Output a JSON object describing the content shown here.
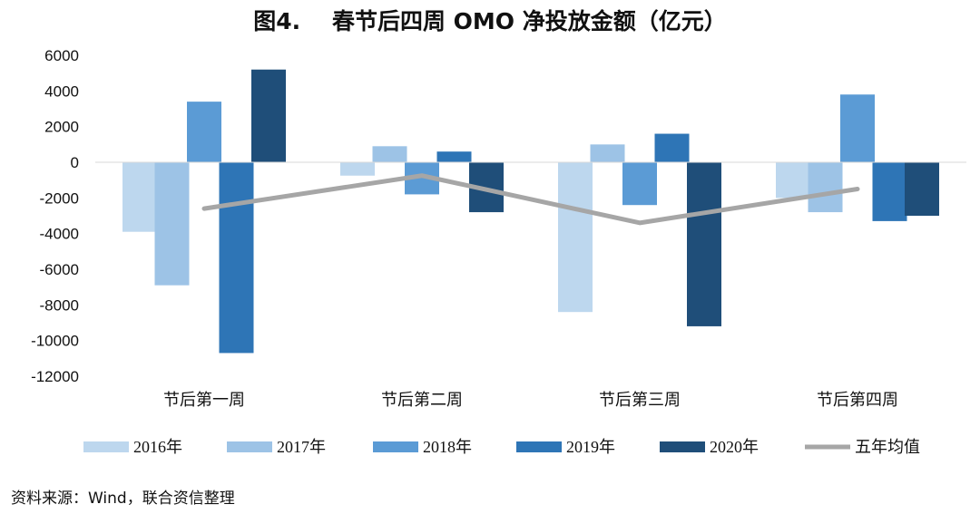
{
  "chart_data": {
    "type": "bar",
    "title": "图4.    春节后四周 OMO 净投放金额（亿元）",
    "categories": [
      "节后第一周",
      "节后第二周",
      "节后第三周",
      "节后第四周"
    ],
    "series": [
      {
        "name": "2016年",
        "color": "#bdd7ee",
        "values": [
          -3900,
          -750,
          -8400,
          -2000
        ]
      },
      {
        "name": "2017年",
        "color": "#9dc3e6",
        "values": [
          -6900,
          900,
          1000,
          -2800
        ]
      },
      {
        "name": "2018年",
        "color": "#5b9bd5",
        "values": [
          3400,
          -1800,
          -2400,
          3800
        ]
      },
      {
        "name": "2019年",
        "color": "#2e75b6",
        "values": [
          -10700,
          600,
          1600,
          -3300
        ]
      },
      {
        "name": "2020年",
        "color": "#1f4e79",
        "values": [
          5200,
          -2800,
          -9200,
          -3000
        ]
      }
    ],
    "line_series": {
      "name": "五年均值",
      "color": "#a6a6a6",
      "values": [
        -2600,
        -750,
        -3400,
        -1500
      ]
    },
    "ylim": [
      -12000,
      6000
    ],
    "yticks": [
      "6000",
      "4000",
      "2000",
      "0",
      "-2000",
      "-4000",
      "-6000",
      "-8000",
      "-10000",
      "-12000"
    ],
    "legend_position": "bottom",
    "grid": false
  },
  "source_note": "资料来源：Wind，联合资信整理"
}
